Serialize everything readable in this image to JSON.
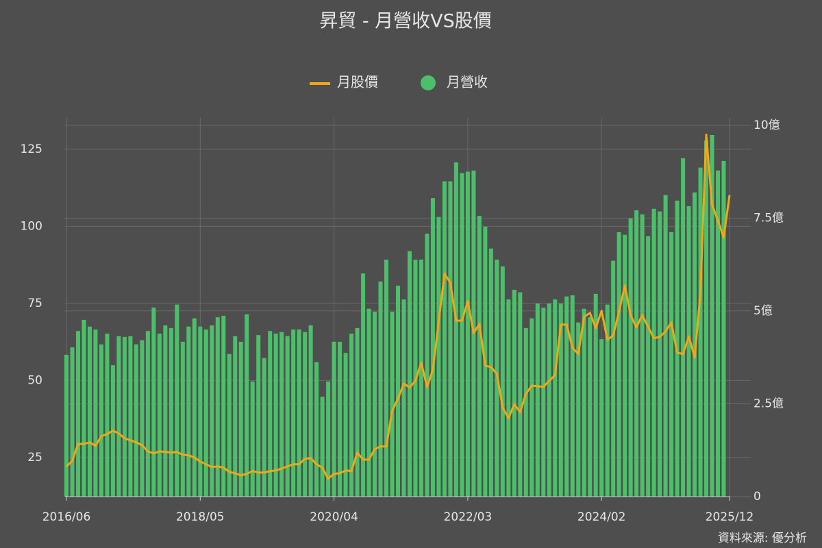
{
  "chart_data": {
    "type": "combo",
    "title": "昇貿 - 月營收VS股價",
    "source": "資料來源: 優分析",
    "categories": [
      "2016/06",
      null,
      null,
      null,
      null,
      null,
      null,
      null,
      null,
      null,
      null,
      null,
      null,
      null,
      null,
      null,
      null,
      null,
      null,
      null,
      null,
      null,
      null,
      "2018/05",
      null,
      null,
      null,
      null,
      null,
      null,
      null,
      null,
      null,
      null,
      null,
      null,
      null,
      null,
      null,
      null,
      null,
      null,
      null,
      null,
      null,
      null,
      "2020/04",
      null,
      null,
      null,
      null,
      null,
      null,
      null,
      null,
      null,
      null,
      null,
      null,
      null,
      null,
      null,
      null,
      null,
      null,
      null,
      null,
      null,
      null,
      "2022/03",
      null,
      null,
      null,
      null,
      null,
      null,
      null,
      null,
      null,
      null,
      null,
      null,
      null,
      null,
      null,
      null,
      null,
      null,
      null,
      null,
      null,
      null,
      "2024/02",
      null,
      null,
      null,
      null,
      null,
      null,
      null,
      null,
      null,
      null,
      null,
      null,
      null,
      null,
      null,
      null,
      null,
      null,
      null,
      null,
      null,
      "2025/12"
    ],
    "series": [
      {
        "name": "月股價",
        "type": "line",
        "axis": "y",
        "color": "#f0a818",
        "values": [
          22.1,
          23.9,
          29.4,
          29.4,
          29.9,
          28.8,
          31.9,
          32.6,
          33.7,
          32.8,
          31.2,
          30.6,
          29.9,
          29.0,
          27.0,
          26.3,
          27.0,
          26.8,
          26.6,
          26.8,
          25.9,
          25.7,
          25.0,
          23.7,
          22.8,
          21.9,
          22.1,
          21.7,
          20.3,
          19.9,
          19.2,
          19.7,
          20.6,
          20.1,
          20.1,
          20.6,
          20.8,
          21.4,
          22.1,
          22.8,
          22.8,
          24.6,
          24.8,
          22.8,
          21.7,
          18.1,
          19.7,
          19.9,
          20.8,
          20.6,
          26.6,
          24.3,
          24.3,
          27.7,
          28.6,
          28.6,
          40.1,
          44.1,
          49.0,
          47.7,
          49.9,
          55.7,
          47.9,
          53.4,
          69.0,
          84.6,
          81.7,
          69.4,
          69.4,
          75.7,
          65.4,
          68.3,
          54.8,
          54.3,
          52.1,
          41.2,
          37.7,
          42.3,
          39.7,
          45.7,
          48.3,
          48.1,
          47.9,
          49.9,
          51.7,
          68.1,
          68.1,
          60.6,
          58.6,
          70.6,
          71.9,
          67.0,
          72.6,
          63.2,
          64.6,
          72.3,
          80.8,
          71.2,
          67.2,
          71.2,
          67.4,
          63.7,
          64.1,
          65.9,
          68.8,
          59.0,
          58.6,
          64.3,
          57.4,
          78.3,
          129.7,
          107.0,
          101.9,
          96.3,
          110.1
        ]
      },
      {
        "name": "月營收",
        "type": "bar",
        "axis": "y2",
        "color": "#4cbf6a",
        "values": [
          3.82,
          4.02,
          4.46,
          4.76,
          4.58,
          4.5,
          4.1,
          4.39,
          3.54,
          4.32,
          4.3,
          4.32,
          4.1,
          4.21,
          4.46,
          5.09,
          4.39,
          4.61,
          4.54,
          5.17,
          4.17,
          4.58,
          4.8,
          4.58,
          4.5,
          4.61,
          4.83,
          4.87,
          3.84,
          4.32,
          4.17,
          4.91,
          3.1,
          4.35,
          3.73,
          4.46,
          4.39,
          4.43,
          4.32,
          4.5,
          4.5,
          4.43,
          4.61,
          3.62,
          2.69,
          3.1,
          4.17,
          4.17,
          3.87,
          4.39,
          4.54,
          6.01,
          5.06,
          4.98,
          5.79,
          6.38,
          4.98,
          5.68,
          5.31,
          6.61,
          6.38,
          6.38,
          7.08,
          8.04,
          7.53,
          8.49,
          8.49,
          9.0,
          8.71,
          8.75,
          8.78,
          7.56,
          7.27,
          6.68,
          6.38,
          6.2,
          5.31,
          5.57,
          5.5,
          4.54,
          4.8,
          5.2,
          5.09,
          5.2,
          5.31,
          5.2,
          5.39,
          5.42,
          4.69,
          5.06,
          4.83,
          5.46,
          4.24,
          5.17,
          6.35,
          7.12,
          7.05,
          7.49,
          7.71,
          7.6,
          7.01,
          7.75,
          7.68,
          8.12,
          7.12,
          7.97,
          9.11,
          7.82,
          8.19,
          8.86,
          9.59,
          9.74,
          8.78,
          9.04,
          null
        ]
      }
    ],
    "ylim": [
      12.3,
      135.2
    ],
    "yticks": [
      25,
      50,
      75,
      100,
      125
    ],
    "y2lim": [
      0,
      10.2
    ],
    "y2ticks": [
      0,
      {
        "value": 2.5,
        "label": "2.5億"
      },
      {
        "value": 5,
        "label": "5億"
      },
      {
        "value": 7.5,
        "label": "7.5億"
      },
      {
        "value": 10,
        "label": "10億"
      }
    ],
    "grid": true,
    "legend": "top"
  }
}
